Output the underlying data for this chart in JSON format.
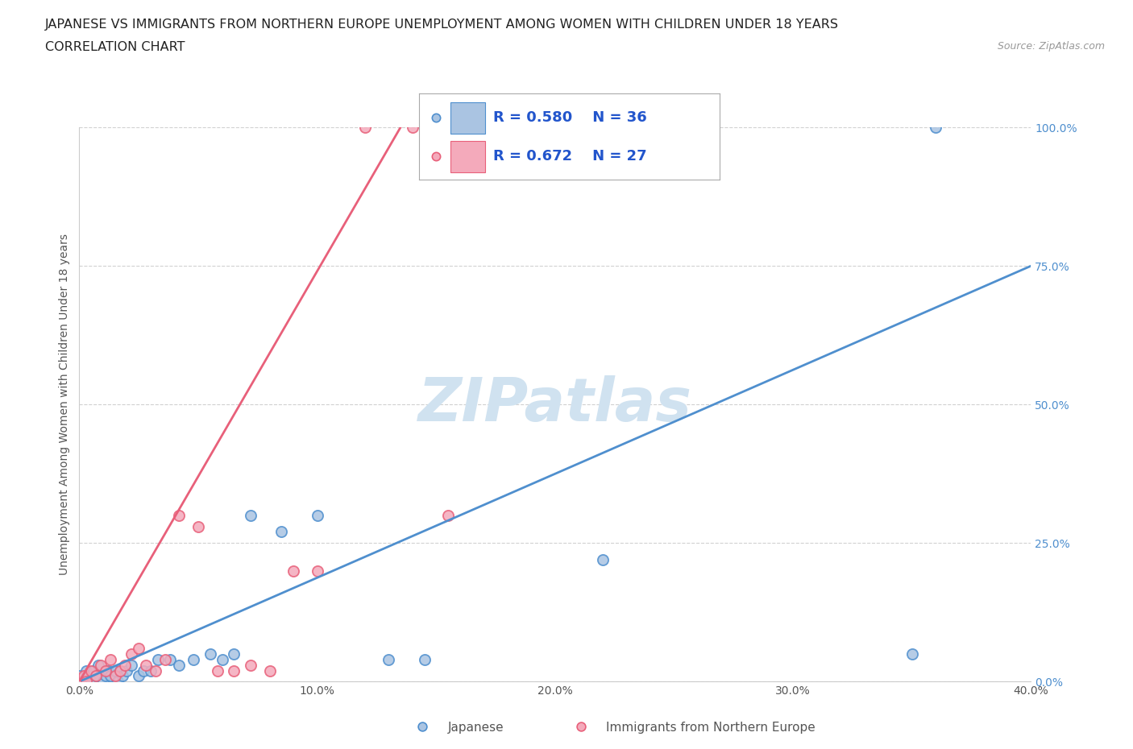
{
  "title_line1": "JAPANESE VS IMMIGRANTS FROM NORTHERN EUROPE UNEMPLOYMENT AMONG WOMEN WITH CHILDREN UNDER 18 YEARS",
  "title_line2": "CORRELATION CHART",
  "source": "Source: ZipAtlas.com",
  "ylabel": "Unemployment Among Women with Children Under 18 years",
  "xlim": [
    0.0,
    0.4
  ],
  "ylim": [
    0.0,
    1.0
  ],
  "xticks": [
    0.0,
    0.1,
    0.2,
    0.3,
    0.4
  ],
  "xtick_labels": [
    "0.0%",
    "10.0%",
    "20.0%",
    "30.0%",
    "40.0%"
  ],
  "yticks": [
    0.0,
    0.25,
    0.5,
    0.75,
    1.0
  ],
  "ytick_labels": [
    "0.0%",
    "25.0%",
    "50.0%",
    "75.0%",
    "100.0%"
  ],
  "japanese_color": "#aac4e2",
  "pink_color": "#f4aabb",
  "blue_line_color": "#4f8fce",
  "pink_line_color": "#e8607a",
  "ytick_color": "#4f8fce",
  "xtick_color": "#555555",
  "legend_text_color": "#2255cc",
  "R_japanese": 0.58,
  "N_japanese": 36,
  "R_northern": 0.672,
  "N_northern": 27,
  "watermark": "ZIPatlas",
  "watermark_color": "#d0e2f0",
  "japanese_x": [
    0.0,
    0.002,
    0.003,
    0.004,
    0.005,
    0.006,
    0.007,
    0.008,
    0.01,
    0.011,
    0.012,
    0.013,
    0.015,
    0.016,
    0.017,
    0.018,
    0.02,
    0.022,
    0.025,
    0.027,
    0.03,
    0.033,
    0.038,
    0.042,
    0.048,
    0.055,
    0.06,
    0.065,
    0.072,
    0.085,
    0.1,
    0.13,
    0.145,
    0.22,
    0.35,
    0.36
  ],
  "japanese_y": [
    0.01,
    0.0,
    0.02,
    0.01,
    0.0,
    0.02,
    0.01,
    0.03,
    0.0,
    0.01,
    0.02,
    0.01,
    0.02,
    0.0,
    0.02,
    0.01,
    0.02,
    0.03,
    0.01,
    0.02,
    0.02,
    0.04,
    0.04,
    0.03,
    0.04,
    0.05,
    0.04,
    0.05,
    0.3,
    0.27,
    0.3,
    0.04,
    0.04,
    0.22,
    0.05,
    1.0
  ],
  "northern_x": [
    0.0,
    0.002,
    0.003,
    0.005,
    0.007,
    0.009,
    0.011,
    0.013,
    0.015,
    0.017,
    0.019,
    0.022,
    0.025,
    0.028,
    0.032,
    0.036,
    0.042,
    0.05,
    0.058,
    0.065,
    0.072,
    0.08,
    0.09,
    0.1,
    0.12,
    0.14,
    0.155
  ],
  "northern_y": [
    0.0,
    0.01,
    0.0,
    0.02,
    0.01,
    0.03,
    0.02,
    0.04,
    0.01,
    0.02,
    0.03,
    0.05,
    0.06,
    0.03,
    0.02,
    0.04,
    0.3,
    0.28,
    0.02,
    0.02,
    0.03,
    0.02,
    0.2,
    0.2,
    1.0,
    1.0,
    0.3
  ],
  "blue_line_x0": 0.0,
  "blue_line_y0": 0.0,
  "blue_line_x1": 0.4,
  "blue_line_y1": 0.75,
  "pink_line_x0": 0.0,
  "pink_line_y0": 0.0,
  "pink_line_x1": 0.135,
  "pink_line_y1": 1.0,
  "bg_color": "#ffffff",
  "grid_color": "#cccccc",
  "title_fontsize": 11.5,
  "axis_label_fontsize": 10,
  "tick_fontsize": 10,
  "legend_fontsize": 13
}
